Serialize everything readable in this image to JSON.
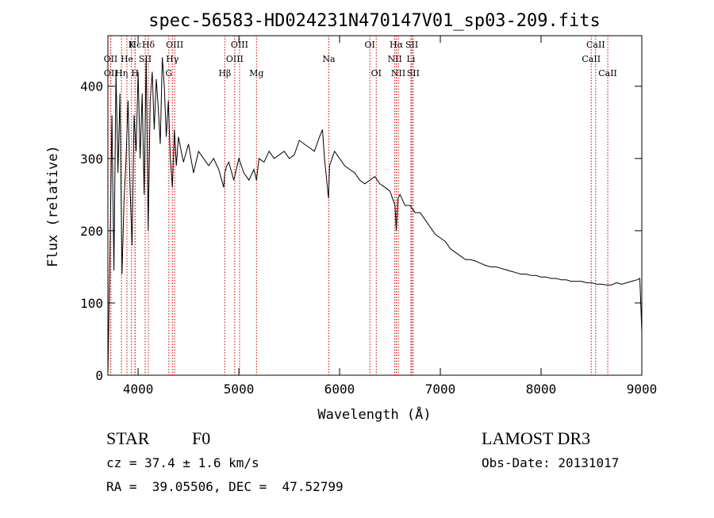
{
  "chart_data": {
    "type": "line",
    "title": "spec-56583-HD024231N470147V01_sp03-209.fits",
    "xlabel": "Wavelength (Å)",
    "ylabel": "Flux (relative)",
    "xlim": [
      3700,
      9000
    ],
    "ylim": [
      0,
      470
    ],
    "x_ticks": [
      4000,
      5000,
      6000,
      7000,
      8000,
      9000
    ],
    "y_ticks": [
      0,
      100,
      200,
      300,
      400
    ],
    "series": [
      {
        "name": "spectrum",
        "x": [
          3700,
          3720,
          3740,
          3760,
          3780,
          3800,
          3820,
          3840,
          3860,
          3880,
          3900,
          3920,
          3940,
          3960,
          3980,
          4000,
          4020,
          4040,
          4060,
          4080,
          4100,
          4120,
          4140,
          4160,
          4180,
          4200,
          4220,
          4240,
          4260,
          4280,
          4300,
          4320,
          4340,
          4360,
          4380,
          4400,
          4450,
          4500,
          4550,
          4600,
          4650,
          4700,
          4750,
          4800,
          4850,
          4861,
          4880,
          4900,
          4950,
          5000,
          5050,
          5100,
          5150,
          5175,
          5200,
          5250,
          5300,
          5350,
          5400,
          5450,
          5500,
          5550,
          5600,
          5650,
          5700,
          5750,
          5800,
          5830,
          5850,
          5890,
          5900,
          5950,
          6000,
          6050,
          6100,
          6150,
          6200,
          6250,
          6300,
          6350,
          6400,
          6450,
          6500,
          6550,
          6563,
          6580,
          6600,
          6650,
          6700,
          6750,
          6800,
          6850,
          6900,
          6950,
          7000,
          7050,
          7100,
          7150,
          7200,
          7250,
          7300,
          7350,
          7400,
          7450,
          7500,
          7550,
          7600,
          7650,
          7700,
          7750,
          7800,
          7850,
          7900,
          7950,
          8000,
          8050,
          8100,
          8150,
          8200,
          8250,
          8300,
          8350,
          8400,
          8450,
          8500,
          8550,
          8600,
          8650,
          8700,
          8750,
          8800,
          8850,
          8900,
          8950,
          8980,
          9000
        ],
        "values": [
          0,
          160,
          360,
          145,
          420,
          280,
          390,
          140,
          240,
          300,
          380,
          260,
          180,
          360,
          310,
          420,
          300,
          390,
          250,
          440,
          200,
          380,
          420,
          340,
          410,
          370,
          320,
          440,
          400,
          330,
          380,
          300,
          260,
          340,
          290,
          330,
          295,
          320,
          280,
          310,
          300,
          290,
          300,
          285,
          260,
          280,
          290,
          295,
          270,
          300,
          280,
          270,
          285,
          270,
          300,
          295,
          310,
          300,
          305,
          310,
          300,
          305,
          325,
          320,
          315,
          310,
          330,
          340,
          300,
          245,
          290,
          310,
          300,
          290,
          285,
          280,
          270,
          265,
          270,
          275,
          265,
          260,
          255,
          235,
          200,
          245,
          250,
          235,
          235,
          225,
          225,
          215,
          205,
          195,
          190,
          185,
          175,
          170,
          165,
          160,
          160,
          158,
          155,
          152,
          150,
          150,
          148,
          146,
          144,
          142,
          140,
          140,
          138,
          138,
          136,
          136,
          134,
          134,
          132,
          132,
          130,
          130,
          130,
          128,
          128,
          126,
          126,
          125,
          125,
          128,
          126,
          128,
          130,
          132,
          134,
          60
        ]
      }
    ],
    "annotations": [
      {
        "label": "Hϵ",
        "x": 3970,
        "row": 0
      },
      {
        "label": "K",
        "x": 3934,
        "row": 0
      },
      {
        "label": "Hδ",
        "x": 4102,
        "row": 0
      },
      {
        "label": "OIII",
        "x": 4363,
        "row": 0
      },
      {
        "label": "OIII",
        "x": 5007,
        "row": 0
      },
      {
        "label": "OI",
        "x": 6300,
        "row": 0
      },
      {
        "label": "Hα",
        "x": 6563,
        "row": 0
      },
      {
        "label": "SII",
        "x": 6717,
        "row": 0
      },
      {
        "label": "CaII",
        "x": 8542,
        "row": 0
      },
      {
        "label": "OII",
        "x": 3727,
        "row": 1
      },
      {
        "label": "He",
        "x": 3889,
        "row": 1
      },
      {
        "label": "SII",
        "x": 4070,
        "row": 1
      },
      {
        "label": "Hγ",
        "x": 4340,
        "row": 1
      },
      {
        "label": "OIII",
        "x": 4959,
        "row": 1
      },
      {
        "label": "Na",
        "x": 5893,
        "row": 1
      },
      {
        "label": "NII",
        "x": 6548,
        "row": 1
      },
      {
        "label": "Li",
        "x": 6708,
        "row": 1
      },
      {
        "label": "CaII",
        "x": 8498,
        "row": 1
      },
      {
        "label": "OII",
        "x": 3729,
        "row": 2
      },
      {
        "label": "Hη",
        "x": 3835,
        "row": 2
      },
      {
        "label": "H",
        "x": 3969,
        "row": 2
      },
      {
        "label": "G",
        "x": 4305,
        "row": 2
      },
      {
        "label": "Hβ",
        "x": 4861,
        "row": 2
      },
      {
        "label": "Mg",
        "x": 5175,
        "row": 2
      },
      {
        "label": "OI",
        "x": 6364,
        "row": 2
      },
      {
        "label": "NII",
        "x": 6583,
        "row": 2
      },
      {
        "label": "SII",
        "x": 6731,
        "row": 2
      },
      {
        "label": "CaII",
        "x": 8662,
        "row": 2
      }
    ],
    "line_color": "#000000",
    "marker_color": "#cc0000"
  },
  "info": {
    "object_type": "STAR",
    "subclass": "F0",
    "survey": "LAMOST DR3",
    "cz": "cz = 37.4 ± 1.6 km/s",
    "obs_date": "Obs-Date: 20131017",
    "coords": "RA =  39.05506, DEC =  47.52799"
  }
}
